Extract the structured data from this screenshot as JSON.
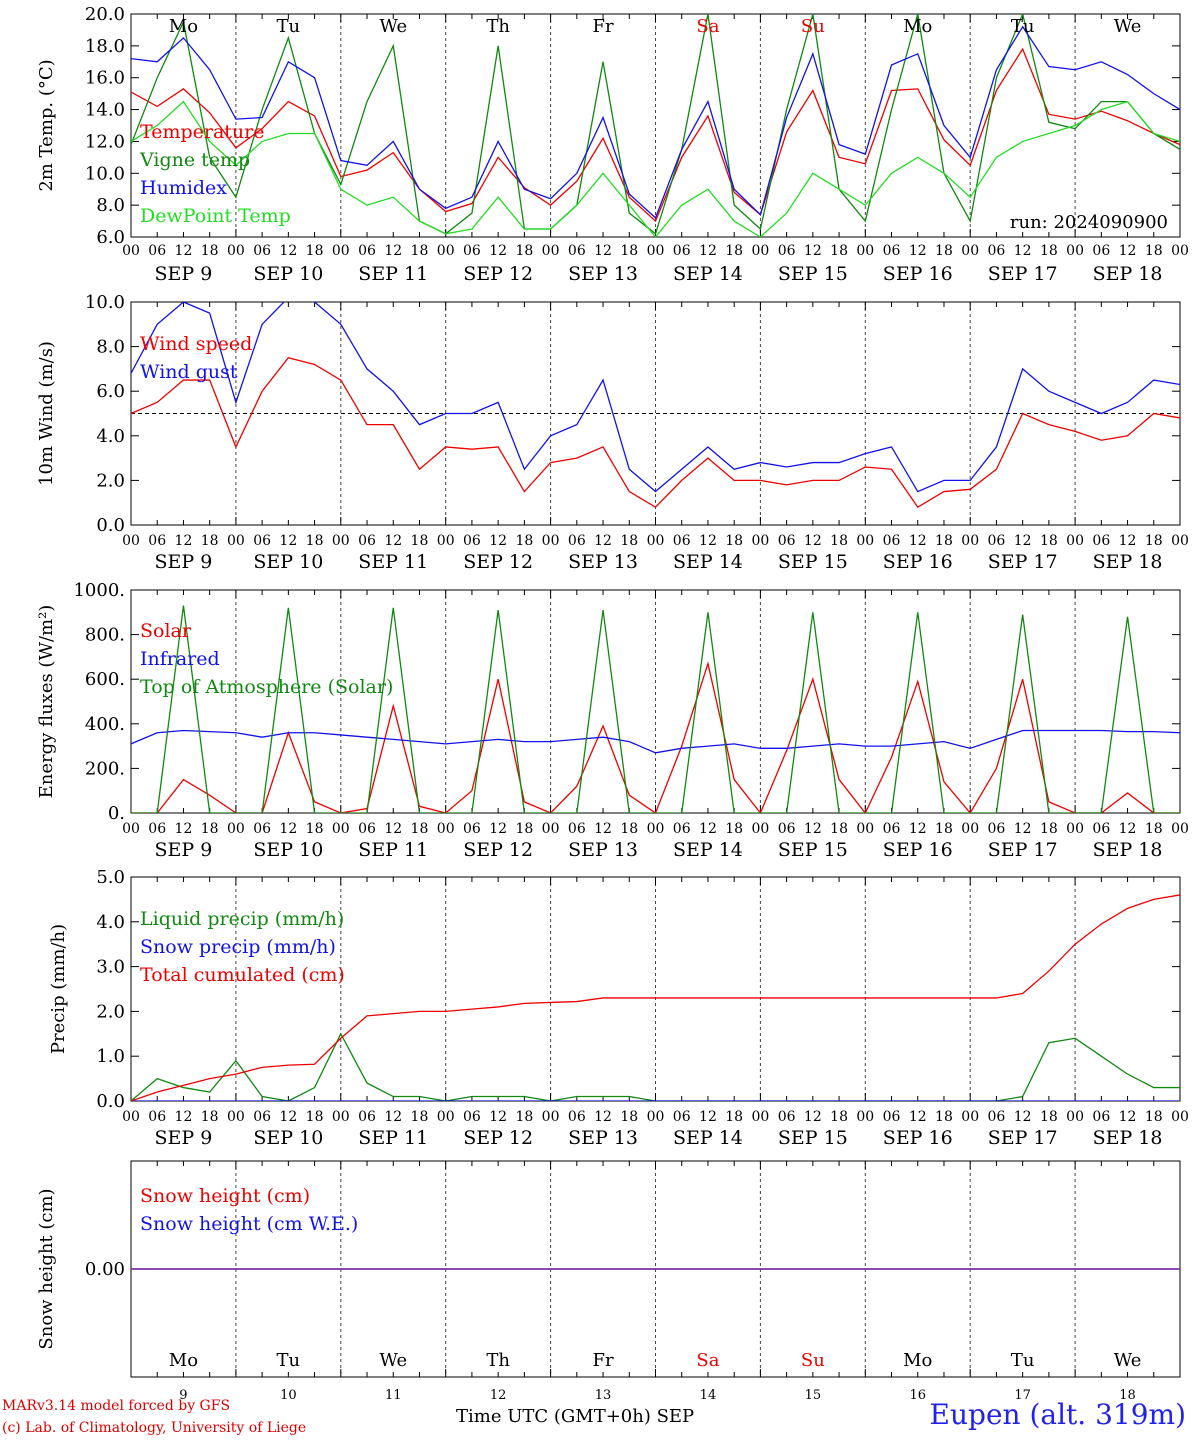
{
  "run_label": "run: 2024090900",
  "footer": {
    "model": "MARv3.14 model forced by GFS",
    "credit": "(c) Lab. of Climatology, University of Liege",
    "xaxis_title": "Time UTC (GMT+0h) SEP",
    "station": "Eupen (alt. 319m)"
  },
  "days": {
    "weekday": [
      "Mo",
      "Tu",
      "We",
      "Th",
      "Fr",
      "Sa",
      "Su",
      "Mo",
      "Tu",
      "We"
    ],
    "weekend": [
      false,
      false,
      false,
      false,
      false,
      true,
      true,
      false,
      false,
      false
    ],
    "date_labels": [
      "SEP  9",
      "SEP 10",
      "SEP 11",
      "SEP 12",
      "SEP 13",
      "SEP 14",
      "SEP 15",
      "SEP 16",
      "SEP 17",
      "SEP 18"
    ],
    "day_numbers": [
      "9",
      "10",
      "11",
      "12",
      "13",
      "14",
      "15",
      "16",
      "17",
      "18"
    ],
    "hour_ticks": [
      "00",
      "06",
      "12",
      "18"
    ],
    "final_tick": "00"
  },
  "colors": {
    "red": "#ee0000",
    "green": "#118811",
    "blue": "#1111ee",
    "lightgreen": "#22dd22",
    "purple": "#7733aa"
  },
  "chart_data": [
    {
      "type": "line",
      "ylabel": "2m Temp. (°C)",
      "ylim": [
        6.0,
        20.0
      ],
      "yticks": [
        "6.0",
        "8.0",
        "10.0",
        "12.0",
        "14.0",
        "16.0",
        "18.0",
        "20.0"
      ],
      "x_hours": [
        0,
        6,
        12,
        18,
        24,
        30,
        36,
        42,
        48,
        54,
        60,
        66,
        72,
        78,
        84,
        90,
        96,
        102,
        108,
        114,
        120,
        126,
        132,
        138,
        144,
        150,
        156,
        162,
        168,
        174,
        180,
        186,
        192,
        198,
        204,
        210,
        216,
        222,
        228,
        234,
        240
      ],
      "series": [
        {
          "name": "Temperature",
          "color": "red",
          "values": [
            15.1,
            14.2,
            15.3,
            13.8,
            11.6,
            12.8,
            14.5,
            13.6,
            9.8,
            10.2,
            11.3,
            9.0,
            7.6,
            8.1,
            11.0,
            9.1,
            8.0,
            9.5,
            12.2,
            8.5,
            7.0,
            11.0,
            13.6,
            8.8,
            7.4,
            12.6,
            15.2,
            11.0,
            10.6,
            15.2,
            15.3,
            12.1,
            10.5,
            15.2,
            17.8,
            13.7,
            13.4,
            13.9,
            13.3,
            12.5,
            11.8
          ]
        },
        {
          "name": "Vigne temp",
          "color": "green",
          "values": [
            11.8,
            16.0,
            19.5,
            11.0,
            8.5,
            14.0,
            18.5,
            12.5,
            9.3,
            14.5,
            18.0,
            7.0,
            6.2,
            7.5,
            18.0,
            6.5,
            6.5,
            8.0,
            17.0,
            7.5,
            6.2,
            11.5,
            20.0,
            8.0,
            6.5,
            14.0,
            20.0,
            9.0,
            7.0,
            14.0,
            20.0,
            10.0,
            7.0,
            16.0,
            20.0,
            13.2,
            12.8,
            14.5,
            14.5,
            12.5,
            11.5
          ]
        },
        {
          "name": "Humidex",
          "color": "blue",
          "values": [
            17.2,
            17.0,
            18.5,
            16.5,
            13.4,
            13.5,
            17.0,
            16.0,
            10.8,
            10.5,
            12.0,
            9.0,
            7.8,
            8.5,
            12.0,
            9.0,
            8.4,
            10.0,
            13.5,
            8.7,
            7.2,
            11.5,
            14.5,
            9.0,
            7.4,
            13.5,
            17.5,
            11.8,
            11.2,
            16.8,
            17.5,
            13.0,
            11.0,
            16.5,
            19.2,
            16.7,
            16.5,
            17.0,
            16.2,
            15.0,
            14.0
          ]
        },
        {
          "name": "DewPoint Temp",
          "color": "lightgreen",
          "values": [
            12.0,
            13.0,
            14.5,
            12.0,
            10.5,
            12.0,
            12.5,
            12.5,
            9.0,
            8.0,
            8.5,
            7.0,
            6.2,
            6.5,
            8.5,
            6.5,
            6.5,
            8.0,
            10.0,
            8.0,
            6.0,
            8.0,
            9.0,
            7.0,
            6.0,
            7.5,
            10.0,
            9.0,
            8.0,
            10.0,
            11.0,
            10.0,
            8.5,
            11.0,
            12.0,
            12.5,
            13.0,
            14.0,
            14.5,
            12.5,
            12.0
          ]
        }
      ],
      "legend_position": "top-left"
    },
    {
      "type": "line",
      "ylabel": "10m Wind (m/s)",
      "ylim": [
        0.0,
        10.0
      ],
      "yticks": [
        "0.0",
        "2.0",
        "4.0",
        "6.0",
        "8.0",
        "10.0"
      ],
      "reference_line": 5.0,
      "x_hours": [
        0,
        6,
        12,
        18,
        24,
        30,
        36,
        42,
        48,
        54,
        60,
        66,
        72,
        78,
        84,
        90,
        96,
        102,
        108,
        114,
        120,
        126,
        132,
        138,
        144,
        150,
        156,
        162,
        168,
        174,
        180,
        186,
        192,
        198,
        204,
        210,
        216,
        222,
        228,
        234,
        240
      ],
      "series": [
        {
          "name": "Wind speed",
          "color": "red",
          "values": [
            5.0,
            5.5,
            6.5,
            6.5,
            3.5,
            6.0,
            7.5,
            7.2,
            6.5,
            4.5,
            4.5,
            2.5,
            3.5,
            3.4,
            3.5,
            1.5,
            2.8,
            3.0,
            3.5,
            1.5,
            0.8,
            2.0,
            3.0,
            2.0,
            2.0,
            1.8,
            2.0,
            2.0,
            2.6,
            2.5,
            0.8,
            1.5,
            1.6,
            2.5,
            5.0,
            4.5,
            4.2,
            3.8,
            4.0,
            5.0,
            4.8
          ]
        },
        {
          "name": "Wind gust",
          "color": "blue",
          "values": [
            6.8,
            9.0,
            10.0,
            9.5,
            5.5,
            9.0,
            10.2,
            10.0,
            9.0,
            7.0,
            6.0,
            4.5,
            5.0,
            5.0,
            5.5,
            2.5,
            4.0,
            4.5,
            6.5,
            2.5,
            1.5,
            2.5,
            3.5,
            2.5,
            2.8,
            2.6,
            2.8,
            2.8,
            3.2,
            3.5,
            1.5,
            2.0,
            2.0,
            3.5,
            7.0,
            6.0,
            5.5,
            5.0,
            5.5,
            6.5,
            6.3
          ]
        }
      ],
      "legend_position": "top-left"
    },
    {
      "type": "line",
      "ylabel": "Energy fluxes (W/m²)",
      "ylim": [
        0,
        1000
      ],
      "yticks": [
        "0.",
        "200.",
        "400.",
        "600.",
        "800.",
        "1000."
      ],
      "x_hours": [
        0,
        6,
        12,
        18,
        24,
        30,
        36,
        42,
        48,
        54,
        60,
        66,
        72,
        78,
        84,
        90,
        96,
        102,
        108,
        114,
        120,
        126,
        132,
        138,
        144,
        150,
        156,
        162,
        168,
        174,
        180,
        186,
        192,
        198,
        204,
        210,
        216,
        222,
        228,
        234,
        240
      ],
      "series": [
        {
          "name": "Solar",
          "color": "red",
          "values": [
            0,
            0,
            150,
            80,
            0,
            0,
            360,
            50,
            0,
            20,
            480,
            30,
            0,
            100,
            600,
            50,
            0,
            120,
            390,
            80,
            0,
            300,
            670,
            150,
            0,
            280,
            600,
            150,
            0,
            250,
            590,
            140,
            0,
            200,
            600,
            50,
            0,
            0,
            90,
            0,
            0
          ]
        },
        {
          "name": "Infrared",
          "color": "blue",
          "values": [
            310,
            360,
            370,
            365,
            360,
            340,
            360,
            360,
            350,
            340,
            330,
            320,
            310,
            320,
            330,
            320,
            320,
            330,
            340,
            320,
            270,
            290,
            300,
            310,
            290,
            290,
            300,
            310,
            300,
            300,
            310,
            320,
            290,
            330,
            370,
            370,
            370,
            370,
            365,
            365,
            360
          ]
        },
        {
          "name": "Top of Atmosphere (Solar)",
          "color": "green",
          "values": [
            0,
            0,
            930,
            0,
            0,
            0,
            920,
            0,
            0,
            0,
            920,
            0,
            0,
            0,
            910,
            0,
            0,
            0,
            910,
            0,
            0,
            0,
            900,
            0,
            0,
            0,
            900,
            0,
            0,
            0,
            900,
            0,
            0,
            0,
            890,
            0,
            0,
            0,
            880,
            0,
            0
          ]
        }
      ],
      "legend_position": "top-left"
    },
    {
      "type": "line",
      "ylabel": "Precip (mm/h)",
      "ylim": [
        0.0,
        5.0
      ],
      "yticks": [
        "0.0",
        "1.0",
        "2.0",
        "3.0",
        "4.0",
        "5.0"
      ],
      "x_hours": [
        0,
        6,
        12,
        18,
        24,
        30,
        36,
        42,
        48,
        54,
        60,
        66,
        72,
        78,
        84,
        90,
        96,
        102,
        108,
        114,
        120,
        126,
        132,
        138,
        144,
        150,
        156,
        162,
        168,
        174,
        180,
        186,
        192,
        198,
        204,
        210,
        216,
        222,
        228,
        234,
        240
      ],
      "series": [
        {
          "name": "Liquid precip (mm/h)",
          "color": "green",
          "values": [
            0.0,
            0.5,
            0.3,
            0.2,
            0.9,
            0.1,
            0.0,
            0.3,
            1.5,
            0.4,
            0.1,
            0.1,
            0.0,
            0.1,
            0.1,
            0.1,
            0.0,
            0.1,
            0.1,
            0.1,
            0.0,
            0.0,
            0.0,
            0.0,
            0.0,
            0.0,
            0.0,
            0.0,
            0.0,
            0.0,
            0.0,
            0.0,
            0.0,
            0.0,
            0.1,
            1.3,
            1.4,
            1.0,
            0.6,
            0.3,
            0.3
          ]
        },
        {
          "name": "Snow precip (mm/h)",
          "color": "blue",
          "values": [
            0,
            0,
            0,
            0,
            0,
            0,
            0,
            0,
            0,
            0,
            0,
            0,
            0,
            0,
            0,
            0,
            0,
            0,
            0,
            0,
            0,
            0,
            0,
            0,
            0,
            0,
            0,
            0,
            0,
            0,
            0,
            0,
            0,
            0,
            0,
            0,
            0,
            0,
            0,
            0,
            0
          ]
        },
        {
          "name": "Total cumulated (cm)",
          "color": "red",
          "values": [
            0.0,
            0.2,
            0.35,
            0.5,
            0.6,
            0.75,
            0.8,
            0.82,
            1.4,
            1.9,
            1.95,
            2.0,
            2.0,
            2.05,
            2.1,
            2.18,
            2.2,
            2.22,
            2.3,
            2.3,
            2.3,
            2.3,
            2.3,
            2.3,
            2.3,
            2.3,
            2.3,
            2.3,
            2.3,
            2.3,
            2.3,
            2.3,
            2.3,
            2.3,
            2.4,
            2.9,
            3.5,
            3.95,
            4.3,
            4.5,
            4.6
          ]
        }
      ],
      "legend_position": "top-left"
    },
    {
      "type": "line",
      "ylabel": "Snow height (cm)",
      "yticks": [
        "0.00"
      ],
      "x_hours": [
        0,
        240
      ],
      "series": [
        {
          "name": "Snow height (cm)",
          "color": "red",
          "values": [
            0.0,
            0.0
          ]
        },
        {
          "name": "Snow height (cm W.E.)",
          "color": "blue",
          "values": [
            0.0,
            0.0
          ]
        }
      ],
      "legend_position": "top-left"
    }
  ]
}
